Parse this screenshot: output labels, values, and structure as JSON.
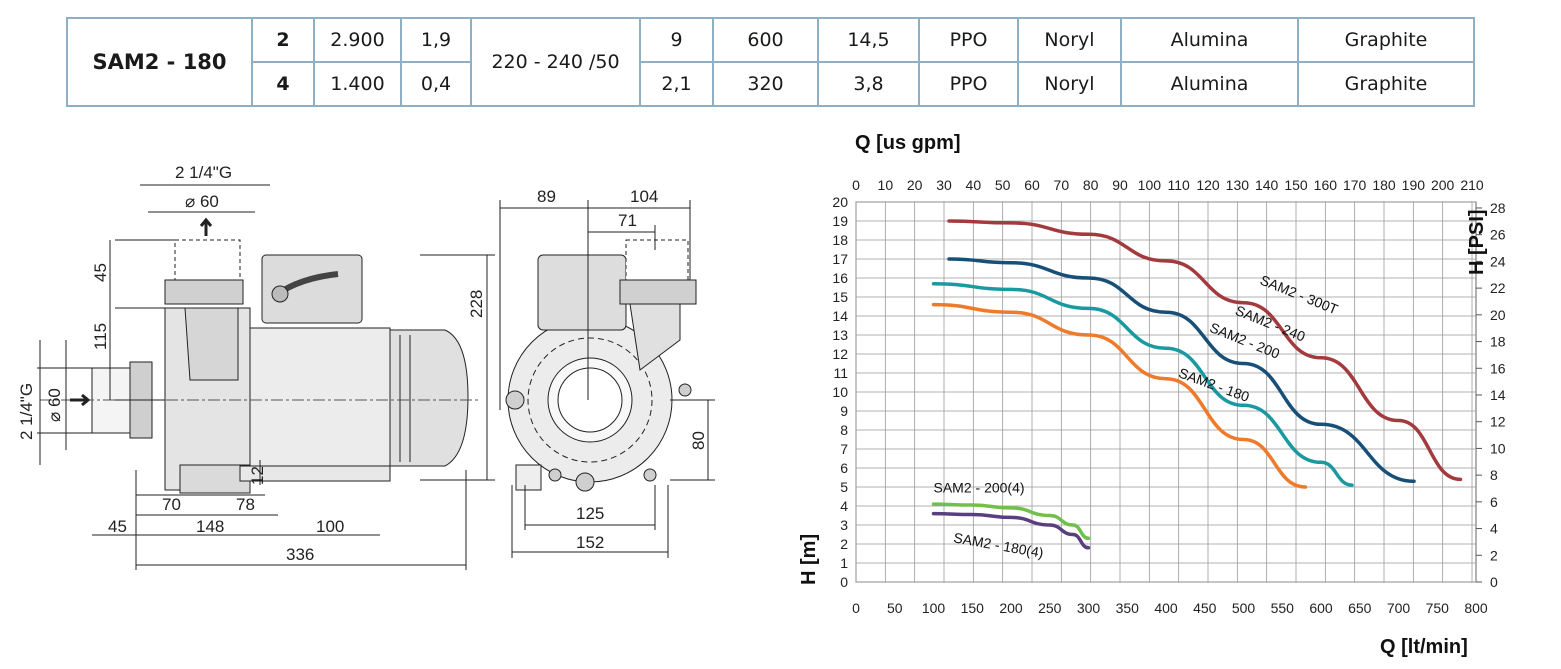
{
  "table": {
    "model": "SAM2 - 180",
    "voltage": "220 - 240 /50",
    "rows": [
      {
        "poles": "2",
        "c1": "2.900",
        "c2": "1,9",
        "c3": "9",
        "c4": "600",
        "c5": "14,5",
        "c6": "PPO",
        "c7": "Noryl",
        "c8": "Alumina",
        "c9": "Graphite"
      },
      {
        "poles": "4",
        "c1": "1.400",
        "c2": "0,4",
        "c3": "2,1",
        "c4": "320",
        "c5": "3,8",
        "c6": "PPO",
        "c7": "Noryl",
        "c8": "Alumina",
        "c9": "Graphite"
      }
    ]
  },
  "drawing": {
    "dims": {
      "inlet_thread": "2 1/4\"G",
      "inlet_dia": "⌀ 60",
      "d45": "45",
      "d115": "115",
      "d70": "70",
      "d78": "78",
      "d12": "12",
      "d45b": "45",
      "d148": "148",
      "d100": "100",
      "d336": "336",
      "d89": "89",
      "d104": "104",
      "d71": "71",
      "d228": "228",
      "d80": "80",
      "d125": "125",
      "d152": "152"
    }
  },
  "chart_data": {
    "type": "line",
    "title_top": "Q [us gpm]",
    "xlabel": "Q [lt/min]",
    "ylabel_left": "H [m]",
    "ylabel_right": "H [PSI]",
    "xlim": [
      0,
      800
    ],
    "ylim": [
      0,
      20
    ],
    "x_ticks": [
      0,
      50,
      100,
      150,
      200,
      250,
      300,
      350,
      400,
      450,
      500,
      550,
      600,
      650,
      700,
      750,
      800
    ],
    "y_ticks": [
      0,
      1,
      2,
      3,
      4,
      5,
      6,
      7,
      8,
      9,
      10,
      11,
      12,
      13,
      14,
      15,
      16,
      17,
      18,
      19,
      20
    ],
    "gpm_ticks": [
      0,
      10,
      20,
      30,
      40,
      50,
      60,
      70,
      80,
      90,
      100,
      110,
      120,
      130,
      140,
      150,
      160,
      170,
      180,
      190,
      200,
      210
    ],
    "psi_ticks": [
      0,
      2,
      4,
      6,
      8,
      10,
      12,
      14,
      16,
      18,
      20,
      22,
      24,
      26,
      28
    ],
    "series": [
      {
        "name": "SAM2 - 300T",
        "color": "#a23a3e",
        "x": [
          120,
          200,
          300,
          400,
          500,
          600,
          700,
          780
        ],
        "y": [
          19.0,
          18.9,
          18.3,
          16.9,
          14.7,
          11.8,
          8.5,
          5.4
        ],
        "label_at": [
          520,
          15.7
        ],
        "label_rot": 22
      },
      {
        "name": "SAM2 - 240",
        "color": "#174f78",
        "x": [
          120,
          200,
          300,
          400,
          500,
          600,
          720
        ],
        "y": [
          17.0,
          16.8,
          16.0,
          14.2,
          11.5,
          8.3,
          5.3
        ],
        "label_at": [
          488,
          14.1
        ],
        "label_rot": 22
      },
      {
        "name": "SAM2 - 200",
        "color": "#1a9aa0",
        "x": [
          100,
          200,
          300,
          400,
          500,
          600,
          640
        ],
        "y": [
          15.7,
          15.4,
          14.4,
          12.3,
          9.3,
          6.3,
          5.1
        ],
        "label_at": [
          455,
          13.2
        ],
        "label_rot": 22
      },
      {
        "name": "SAM2 - 180",
        "color": "#ee7a2b",
        "x": [
          100,
          200,
          300,
          400,
          500,
          580
        ],
        "y": [
          14.6,
          14.2,
          13.0,
          10.7,
          7.5,
          5.0
        ],
        "label_at": [
          415,
          10.8
        ],
        "label_rot": 20
      },
      {
        "name": "SAM2 - 200(4)",
        "color": "#70c04b",
        "x": [
          100,
          150,
          200,
          250,
          280,
          300
        ],
        "y": [
          4.1,
          4.05,
          3.9,
          3.5,
          3.0,
          2.3
        ],
        "label_at": [
          100,
          4.7
        ],
        "label_rot": 0
      },
      {
        "name": "SAM2 - 180(4)",
        "color": "#5a3f80",
        "x": [
          100,
          150,
          200,
          250,
          280,
          300
        ],
        "y": [
          3.6,
          3.55,
          3.4,
          3.0,
          2.5,
          1.8
        ],
        "label_at": [
          125,
          2.1
        ],
        "label_rot": 10
      }
    ]
  }
}
